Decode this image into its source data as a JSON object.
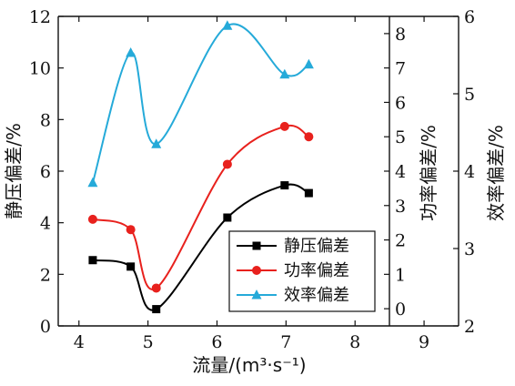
{
  "chart_data": {
    "type": "line",
    "xlabel": "流量/(m³·s⁻¹)",
    "x_ticks": [
      "4",
      "5",
      "6",
      "7",
      "8",
      "9"
    ],
    "xlim": [
      3.7,
      9.5
    ],
    "y_axes": [
      {
        "id": "left",
        "label": "静压偏差/%",
        "ylim": [
          0,
          12
        ],
        "ticks": [
          "0",
          "2",
          "4",
          "6",
          "8",
          "10",
          "12"
        ]
      },
      {
        "id": "right1",
        "label": "功率偏差/%",
        "ylim": [
          -0.5,
          8.5
        ],
        "ticks": [
          "0",
          "1",
          "2",
          "3",
          "4",
          "5",
          "6",
          "7",
          "8"
        ]
      },
      {
        "id": "right2",
        "label": "效率偏差/%",
        "ylim": [
          2,
          6
        ],
        "ticks": [
          "2",
          "3",
          "4",
          "5",
          "6"
        ]
      }
    ],
    "series": [
      {
        "name": "静压偏差",
        "axis": "left",
        "color": "#000000",
        "marker": "square",
        "x": [
          4.2,
          4.75,
          5.12,
          6.15,
          6.98,
          7.33
        ],
        "y": [
          2.55,
          2.3,
          0.65,
          4.2,
          5.45,
          5.15
        ]
      },
      {
        "name": "功率偏差",
        "axis": "right1",
        "color": "#e8211d",
        "marker": "circle",
        "x": [
          4.2,
          4.75,
          5.12,
          6.15,
          6.98,
          7.33
        ],
        "y": [
          2.6,
          2.3,
          0.6,
          4.2,
          5.3,
          5.0
        ]
      },
      {
        "name": "效率偏差",
        "axis": "right2",
        "color": "#25aad9",
        "marker": "triangle",
        "x": [
          4.2,
          4.75,
          5.12,
          6.15,
          6.98,
          7.33
        ],
        "y": [
          3.85,
          5.53,
          4.35,
          5.88,
          5.25,
          5.38
        ]
      }
    ],
    "legend": {
      "placement": "bottom-right"
    }
  }
}
